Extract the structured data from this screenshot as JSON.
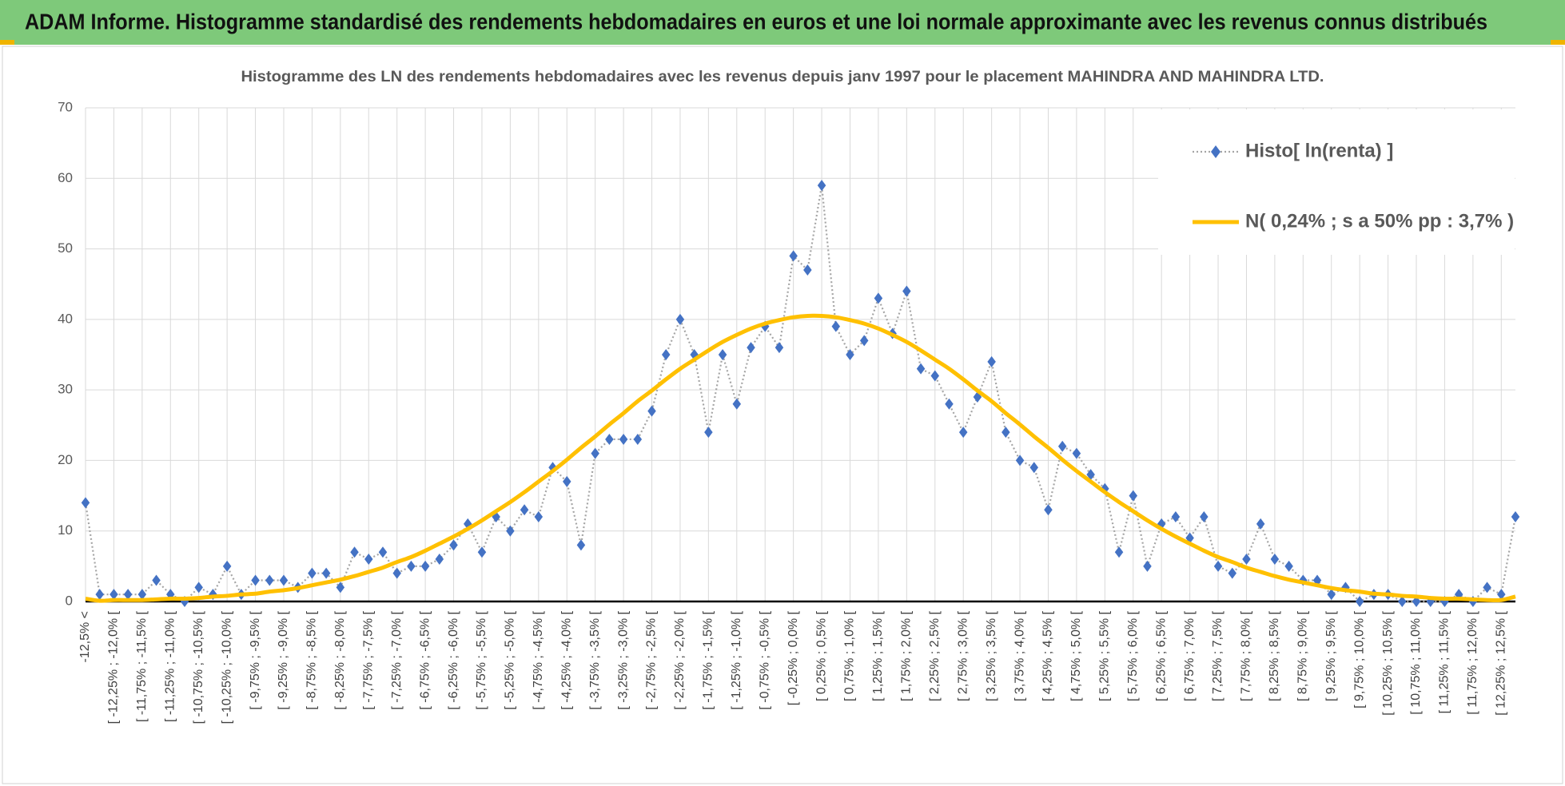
{
  "chart_data": {
    "type": "line",
    "header": "ADAM Informe. Histogramme standardisé des rendements hebdomadaires en euros et une loi normale approximante avec les revenus connus distribués",
    "title": "Histogramme  des LN des rendements hebdomadaires avec les revenus depuis janv 1997 pour le placement MAHINDRA AND MAHINDRA LTD.",
    "categories": [
      "-12,5% <",
      null,
      "[ -12,25% ; -12,0% [",
      null,
      "[ -11,75% ; -11,5% [",
      null,
      "[ -11,25% ; -11,0% [",
      null,
      "[ -10,75% ; -10,5% [",
      null,
      "[ -10,25% ; -10,0% [",
      null,
      "[ -9,75% ; -9,5% [",
      null,
      "[ -9,25% ; -9,0% [",
      null,
      "[ -8,75% ; -8,5% [",
      null,
      "[ -8,25% ; -8,0% [",
      null,
      "[ -7,75% ; -7,5% [",
      null,
      "[ -7,25% ; -7,0% [",
      null,
      "[ -6,75% ; -6,5% [",
      null,
      "[ -6,25% ; -6,0% [",
      null,
      "[ -5,75% ; -5,5% [",
      null,
      "[ -5,25% ; -5,0% [",
      null,
      "[ -4,75% ; -4,5% [",
      null,
      "[ -4,25% ; -4,0% [",
      null,
      "[ -3,75% ; -3,5% [",
      null,
      "[ -3,25% ; -3,0% [",
      null,
      "[ -2,75% ; -2,5% [",
      null,
      "[ -2,25% ; -2,0% [",
      null,
      "[ -1,75% ; -1,5% [",
      null,
      "[ -1,25% ; -1,0% [",
      null,
      "[ -0,75% ; -0,5% [",
      null,
      "[ -0,25% ; 0,0% [",
      null,
      "[ 0,25% ; 0,5% [",
      null,
      "[ 0,75% ; 1,0% [",
      null,
      "[ 1,25% ; 1,5% [",
      null,
      "[ 1,75% ; 2,0% [",
      null,
      "[ 2,25% ; 2,5% [",
      null,
      "[ 2,75% ; 3,0% [",
      null,
      "[ 3,25% ; 3,5% [",
      null,
      "[ 3,75% ; 4,0% [",
      null,
      "[ 4,25% ; 4,5% [",
      null,
      "[ 4,75% ; 5,0% [",
      null,
      "[ 5,25% ; 5,5% [",
      null,
      "[ 5,75% ; 6,0% [",
      null,
      "[ 6,25% ; 6,5% [",
      null,
      "[ 6,75% ; 7,0% [",
      null,
      "[ 7,25% ; 7,5% [",
      null,
      "[ 7,75% ; 8,0% [",
      null,
      "[ 8,25% ; 8,5% [",
      null,
      "[ 8,75% ; 9,0% [",
      null,
      "[ 9,25% ; 9,5% [",
      null,
      "[ 9,75% ; 10,0% [",
      null,
      "[ 10,25% ; 10,5% [",
      null,
      "[ 10,75% ; 11,0% [",
      null,
      "[ 11,25% ; 11,5% [",
      null,
      "[ 11,75% ; 12,0% [",
      null,
      "[ 12,25% ; 12,5% [",
      null
    ],
    "series": [
      {
        "name": "Histo[ ln(renta) ]",
        "color": "#4472c4",
        "line_color": "#a5a5a5",
        "marker": "diamond",
        "line": "dotted",
        "values": [
          14,
          1,
          1,
          1,
          1,
          3,
          1,
          0,
          2,
          1,
          5,
          1,
          3,
          3,
          3,
          2,
          4,
          4,
          2,
          7,
          6,
          7,
          4,
          5,
          5,
          6,
          8,
          11,
          7,
          12,
          10,
          13,
          12,
          19,
          17,
          8,
          21,
          23,
          23,
          23,
          27,
          35,
          40,
          35,
          24,
          35,
          28,
          36,
          39,
          36,
          49,
          47,
          59,
          39,
          35,
          37,
          43,
          38,
          44,
          33,
          32,
          28,
          24,
          29,
          34,
          24,
          20,
          19,
          13,
          22,
          21,
          18,
          16,
          7,
          15,
          5,
          11,
          12,
          9,
          12,
          5,
          4,
          6,
          11,
          6,
          5,
          3,
          3,
          1,
          2,
          0,
          1,
          1,
          0,
          0,
          0,
          0,
          1,
          0,
          2,
          1,
          12
        ]
      },
      {
        "name": "N( 0,24% ; s a 50% pp : 3,7% )",
        "color": "#ffc000",
        "marker": "none",
        "line": "solid",
        "values": [
          0.4,
          0.1,
          0.2,
          0.2,
          0.2,
          0.3,
          0.4,
          0.4,
          0.5,
          0.7,
          0.8,
          1.0,
          1.1,
          1.4,
          1.6,
          1.9,
          2.3,
          2.7,
          3.1,
          3.6,
          4.2,
          4.8,
          5.6,
          6.3,
          7.2,
          8.2,
          9.2,
          10.3,
          11.5,
          12.8,
          14.1,
          15.5,
          17.0,
          18.5,
          20.1,
          21.8,
          23.4,
          25.1,
          26.7,
          28.4,
          29.9,
          31.5,
          33.0,
          34.3,
          35.6,
          36.8,
          37.8,
          38.7,
          39.4,
          39.9,
          40.3,
          40.5,
          40.5,
          40.3,
          39.9,
          39.4,
          38.7,
          37.8,
          36.8,
          35.6,
          34.3,
          33.0,
          31.5,
          29.9,
          28.4,
          26.7,
          25.1,
          23.4,
          21.8,
          20.1,
          18.5,
          17.0,
          15.5,
          14.1,
          12.8,
          11.5,
          10.3,
          9.2,
          8.2,
          7.2,
          6.3,
          5.6,
          4.8,
          4.2,
          3.6,
          3.1,
          2.7,
          2.3,
          1.9,
          1.6,
          1.4,
          1.1,
          1.0,
          0.8,
          0.7,
          0.5,
          0.4,
          0.4,
          0.3,
          0.2,
          0.2,
          0.7
        ]
      }
    ],
    "ylim": [
      0,
      70
    ],
    "yticks": [
      0,
      10,
      20,
      30,
      40,
      50,
      60,
      70
    ],
    "grid": true,
    "legend": "upper right"
  }
}
